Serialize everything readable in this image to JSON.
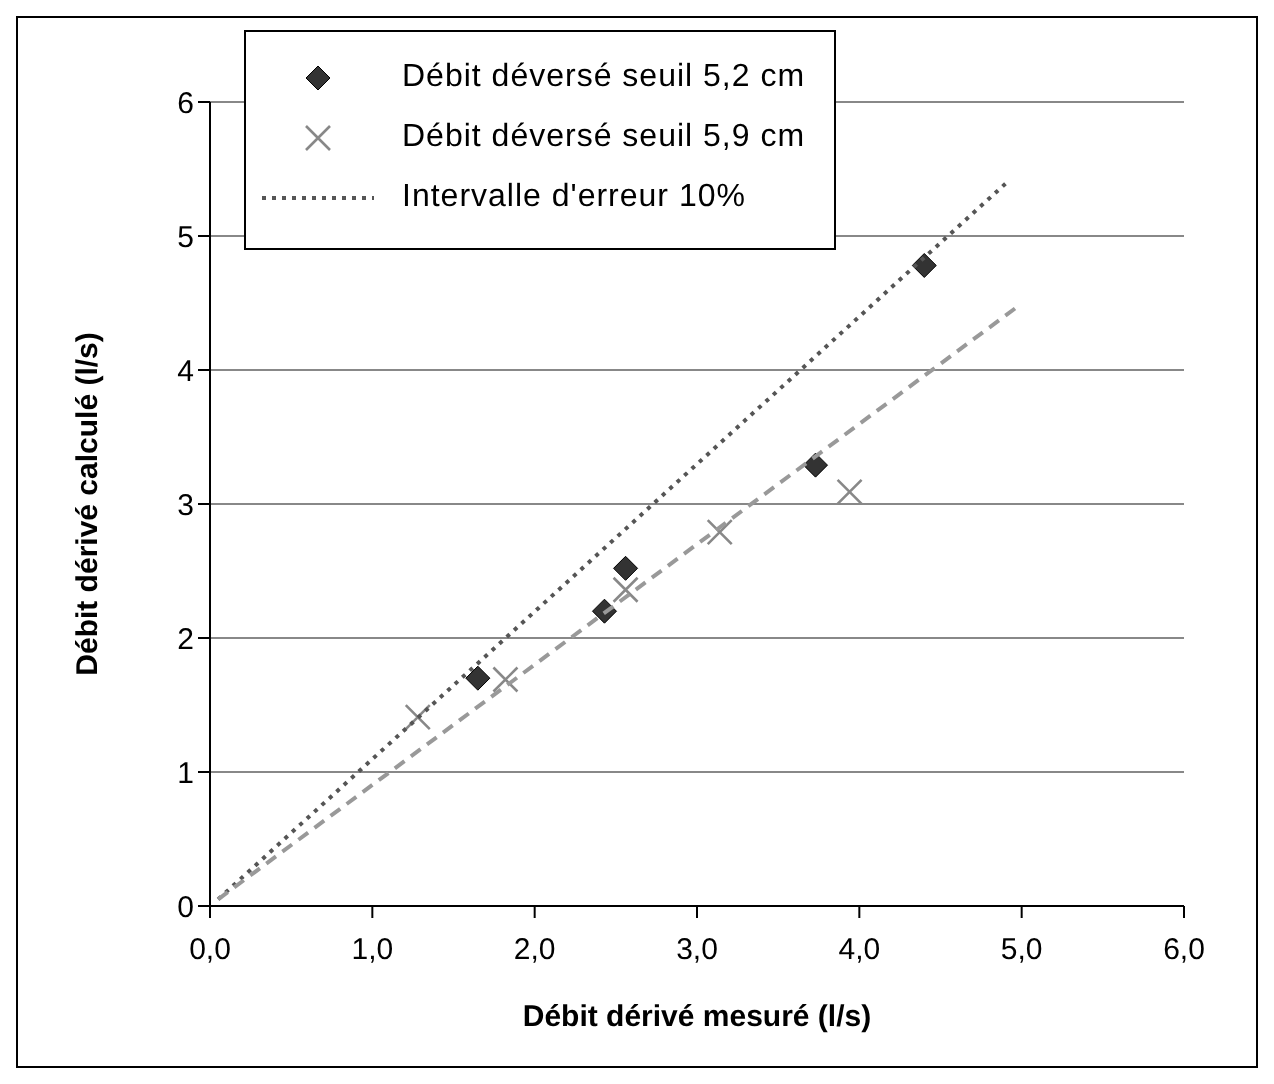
{
  "chart_data": {
    "type": "scatter",
    "xlabel": "Débit dérivé mesuré (l/s)",
    "ylabel": "Débit dérivé calculé (l/s)",
    "xlim": [
      0,
      6
    ],
    "xticks": [
      {
        "value": 0,
        "label": "0,0"
      },
      {
        "value": 1,
        "label": "1,0"
      },
      {
        "value": 2,
        "label": "2,0"
      },
      {
        "value": 3,
        "label": "3,0"
      },
      {
        "value": 4,
        "label": "4,0"
      },
      {
        "value": 5,
        "label": "5,0"
      },
      {
        "value": 6,
        "label": "6,0"
      }
    ],
    "ylim": [
      0,
      6
    ],
    "yticks": [
      0,
      1,
      2,
      3,
      4,
      5,
      6
    ],
    "grid": "y",
    "legend": "top left",
    "series": [
      {
        "name": "Débit déversé seuil 5,2 cm",
        "marker": "diamond",
        "color": "#333333",
        "x": [
          1.65,
          2.43,
          2.56,
          3.73,
          4.4
        ],
        "values": [
          1.7,
          2.2,
          2.52,
          3.29,
          4.78
        ]
      },
      {
        "name": "Débit déversé seuil 5,9 cm",
        "marker": "cross",
        "color": "#888888",
        "x": [
          1.28,
          1.82,
          2.56,
          3.14,
          3.94
        ],
        "values": [
          1.41,
          1.69,
          2.36,
          2.79,
          3.09
        ]
      },
      {
        "name": "Intervalle d'erreur 10%",
        "type": "line",
        "marker": "none",
        "line_style": "dotted",
        "color": "#555555",
        "x": [
          0.05,
          4.9
        ],
        "values": [
          0.05,
          5.39
        ]
      },
      {
        "type": "line",
        "marker": "none",
        "line_style": "dashed",
        "color": "#999999",
        "x": [
          0.05,
          4.96
        ],
        "values": [
          0.05,
          4.46
        ]
      }
    ]
  }
}
